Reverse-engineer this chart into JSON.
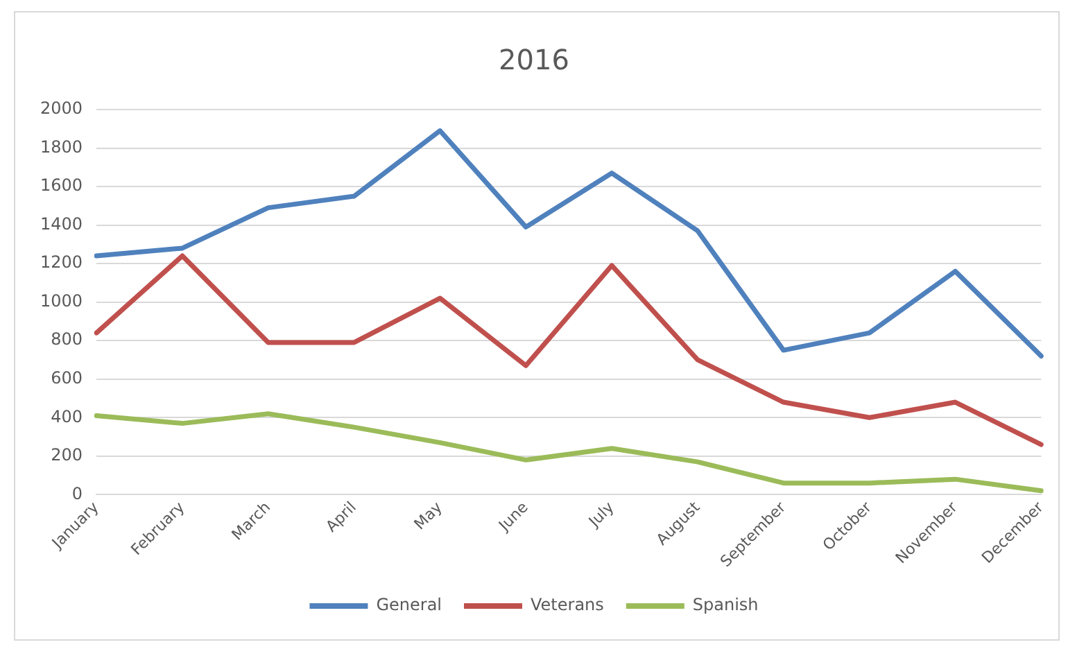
{
  "chart_data": {
    "type": "line",
    "title": "2016",
    "categories": [
      "January",
      "February",
      "March",
      "April",
      "May",
      "June",
      "July",
      "August",
      "September",
      "October",
      "November",
      "December"
    ],
    "series": [
      {
        "name": "General",
        "color": "#4f81bd",
        "values": [
          1240,
          1280,
          1490,
          1550,
          1890,
          1390,
          1670,
          1370,
          750,
          840,
          1160,
          720
        ]
      },
      {
        "name": "Veterans",
        "color": "#c0504d",
        "values": [
          840,
          1240,
          790,
          790,
          1020,
          670,
          1190,
          700,
          480,
          400,
          480,
          260
        ]
      },
      {
        "name": "Spanish",
        "color": "#9bbb59",
        "values": [
          410,
          370,
          420,
          350,
          270,
          180,
          240,
          170,
          60,
          60,
          80,
          20
        ]
      }
    ],
    "ylim": [
      0,
      2000
    ],
    "yticks": [
      0,
      200,
      400,
      600,
      800,
      1000,
      1200,
      1400,
      1600,
      1800,
      2000
    ],
    "grid": "y",
    "legend": "bottom",
    "marker": "none",
    "line_style": "solid"
  }
}
